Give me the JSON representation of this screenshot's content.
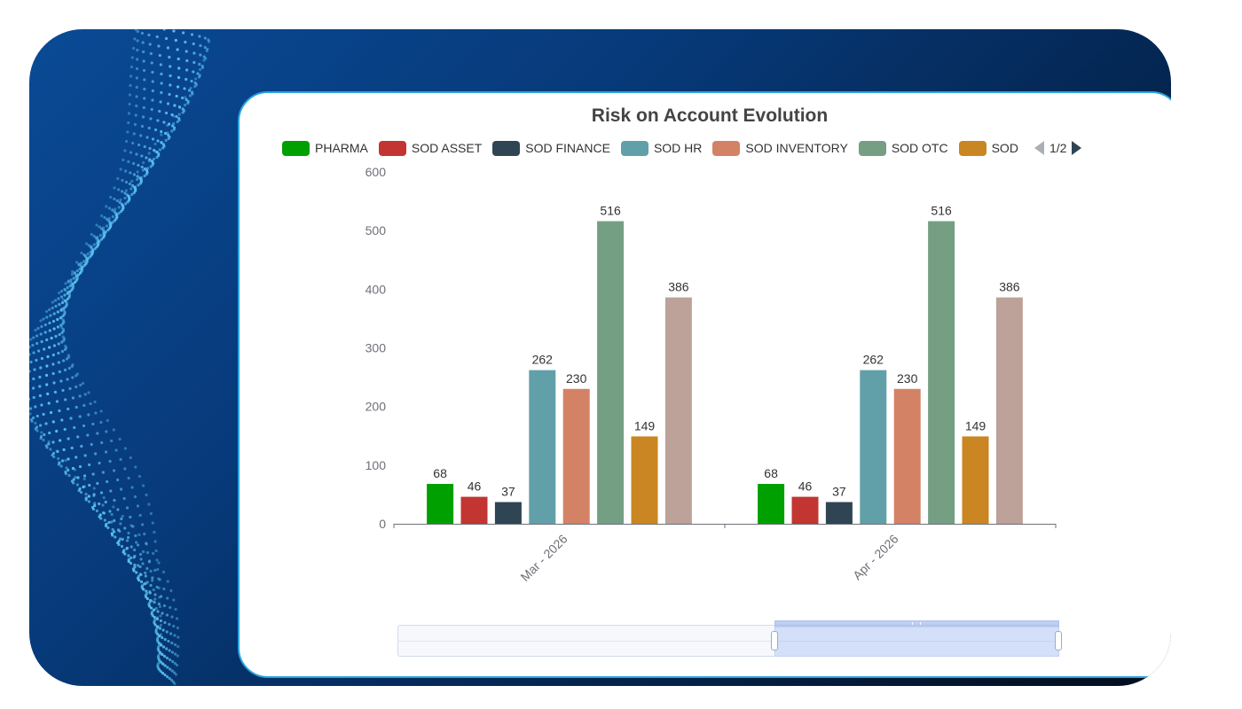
{
  "chart_data": {
    "type": "bar",
    "title": "Risk on Account Evolution",
    "categories": [
      "Mar - 2026",
      "Apr - 2026"
    ],
    "series": [
      {
        "name": "PHARMA",
        "color": "#00a000",
        "values": [
          68,
          68
        ]
      },
      {
        "name": "SOD ASSET",
        "color": "#c23531",
        "values": [
          46,
          46
        ]
      },
      {
        "name": "SOD FINANCE",
        "color": "#2f4554",
        "values": [
          37,
          37
        ]
      },
      {
        "name": "SOD HR",
        "color": "#61a0a8",
        "values": [
          262,
          262
        ]
      },
      {
        "name": "SOD INVENTORY",
        "color": "#d48265",
        "values": [
          230,
          230
        ]
      },
      {
        "name": "SOD OTC",
        "color": "#749f83",
        "values": [
          516,
          516
        ]
      },
      {
        "name": "SOD",
        "color": "#ca8622",
        "values": [
          149,
          149
        ]
      },
      {
        "name": "",
        "color": "#bda29a",
        "values": [
          386,
          386
        ]
      }
    ],
    "ylim": [
      0,
      600
    ],
    "yticks": [
      0,
      100,
      200,
      300,
      400,
      500,
      600
    ],
    "grid": false,
    "legend_position": "top"
  },
  "legend_pager": "1/2",
  "data_zoom": {
    "start_fraction": 0.57,
    "end_fraction": 1.0
  }
}
